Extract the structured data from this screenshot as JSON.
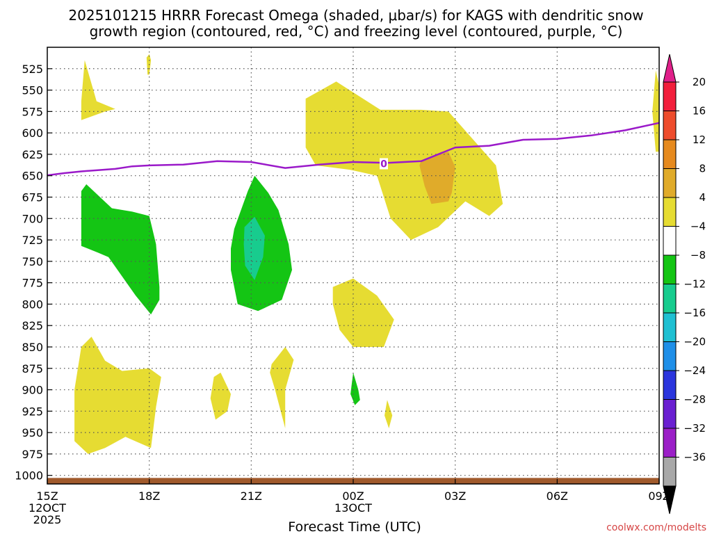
{
  "chart_data": {
    "type": "heatmap",
    "title_line1": "2025101215 HRRR Forecast Omega (shaded, μbar/s) for KAGS with dendritic snow",
    "title_line2": "growth region (contoured, red, °C) and freezing level (contoured, purple, °C)",
    "xlabel": "Forecast Time (UTC)",
    "credit": "coolwx.com/modelts",
    "x_range_hours": [
      0,
      18
    ],
    "y_range_mb": [
      1010,
      500
    ],
    "y_axis_inverted": true,
    "x_ticks": [
      {
        "hour": 0,
        "label": "15Z",
        "sub": [
          "12OCT",
          "2025"
        ]
      },
      {
        "hour": 3,
        "label": "18Z",
        "sub": []
      },
      {
        "hour": 6,
        "label": "21Z",
        "sub": []
      },
      {
        "hour": 9,
        "label": "00Z",
        "sub": [
          "13OCT"
        ]
      },
      {
        "hour": 12,
        "label": "03Z",
        "sub": []
      },
      {
        "hour": 15,
        "label": "06Z",
        "sub": []
      },
      {
        "hour": 18,
        "label": "09Z",
        "sub": []
      }
    ],
    "y_ticks": [
      525,
      550,
      575,
      600,
      625,
      650,
      675,
      700,
      725,
      750,
      775,
      800,
      825,
      850,
      875,
      900,
      925,
      950,
      975,
      1000
    ],
    "colorbar": {
      "levels": [
        -36,
        -32,
        -28,
        -24,
        -20,
        -16,
        -12,
        -8,
        -4,
        4,
        8,
        12,
        16,
        20
      ],
      "colors": [
        "#000000",
        "#a8a8a8",
        "#9b1fc7",
        "#6a1fd1",
        "#2b35dd",
        "#1f8fe8",
        "#1fc0d2",
        "#18cc8e",
        "#14c514",
        "#ffffff",
        "#e6dc32",
        "#e0ab2a",
        "#e68a1e",
        "#ee4c2c",
        "#f21f3c",
        "#e0208a"
      ],
      "labels": [
        "20",
        "16",
        "12",
        "8",
        "4",
        "−4",
        "−8",
        "−12",
        "−16",
        "−20",
        "−24",
        "−28",
        "−32",
        "−36"
      ]
    },
    "freezing_level": {
      "label": "0",
      "hours": [
        -0.5,
        0.5,
        1,
        2,
        2.5,
        3,
        4,
        5,
        6,
        7,
        8,
        9,
        10,
        11,
        12,
        13,
        14,
        15,
        16,
        17,
        18.5
      ],
      "pressure": [
        652,
        647,
        645,
        642,
        639,
        638,
        637,
        633,
        634,
        641,
        637,
        634,
        635,
        633,
        617,
        615,
        608,
        607,
        603,
        597,
        584
      ]
    },
    "omega_regions": [
      {
        "level": "4 to 8",
        "color": "#e6dc32",
        "points": [
          [
            1,
            563
          ],
          [
            1.1,
            515
          ],
          [
            1.45,
            563
          ],
          [
            2,
            572
          ],
          [
            1.7,
            575
          ],
          [
            1,
            585
          ]
        ]
      },
      {
        "level": "4 to 8",
        "color": "#e6dc32",
        "points": [
          [
            7.6,
            560
          ],
          [
            8.5,
            540
          ],
          [
            9.8,
            573
          ],
          [
            11,
            573
          ],
          [
            11.8,
            575
          ],
          [
            12.4,
            602
          ],
          [
            13.2,
            638
          ],
          [
            13.4,
            683
          ],
          [
            13,
            697
          ],
          [
            12.3,
            680
          ],
          [
            11.5,
            710
          ],
          [
            10.7,
            725
          ],
          [
            10.1,
            700
          ],
          [
            9.7,
            650
          ],
          [
            8.9,
            643
          ],
          [
            7.9,
            638
          ],
          [
            7.6,
            617
          ]
        ]
      },
      {
        "level": "4 to 8",
        "color": "#e6dc32",
        "points": [
          [
            17.8,
            575
          ],
          [
            17.9,
            527
          ],
          [
            18.2,
            580
          ],
          [
            18.2,
            622
          ],
          [
            17.9,
            622
          ]
        ]
      },
      {
        "level": "4 to 8",
        "color": "#e6dc32",
        "points": [
          [
            8.4,
            780
          ],
          [
            9,
            770
          ],
          [
            9.7,
            790
          ],
          [
            10.2,
            818
          ],
          [
            9.9,
            850
          ],
          [
            9,
            850
          ],
          [
            8.6,
            830
          ],
          [
            8.4,
            800
          ]
        ]
      },
      {
        "level": "4 to 8",
        "color": "#e6dc32",
        "points": [
          [
            1,
            850
          ],
          [
            1.3,
            838
          ],
          [
            1.7,
            866
          ],
          [
            2.2,
            878
          ],
          [
            3,
            875
          ],
          [
            3.35,
            885
          ],
          [
            3.2,
            920
          ],
          [
            3.05,
            968
          ],
          [
            2.3,
            955
          ],
          [
            1.7,
            968
          ],
          [
            1.2,
            975
          ],
          [
            0.8,
            960
          ],
          [
            0.8,
            900
          ]
        ]
      },
      {
        "level": "4 to 8",
        "color": "#e6dc32",
        "points": [
          [
            4.9,
            885
          ],
          [
            5.1,
            880
          ],
          [
            5.4,
            905
          ],
          [
            5.3,
            925
          ],
          [
            4.95,
            935
          ],
          [
            4.8,
            910
          ]
        ]
      },
      {
        "level": "4 to 8",
        "color": "#e6dc32",
        "points": [
          [
            6.6,
            870
          ],
          [
            7.0,
            850
          ],
          [
            7.25,
            865
          ],
          [
            7.0,
            900
          ],
          [
            7.0,
            945
          ],
          [
            6.7,
            900
          ],
          [
            6.55,
            880
          ]
        ]
      },
      {
        "level": "4 to 8",
        "color": "#e6dc32",
        "points": [
          [
            10.0,
            912
          ],
          [
            10.15,
            930
          ],
          [
            10.05,
            945
          ],
          [
            9.92,
            930
          ]
        ]
      },
      {
        "level": "4 to 8",
        "color": "#e6dc32",
        "points": [
          [
            2.92,
            512
          ],
          [
            3.0,
            508
          ],
          [
            3.05,
            515
          ],
          [
            3.0,
            532
          ],
          [
            2.95,
            532
          ]
        ]
      },
      {
        "level": "8 to 12",
        "color": "#e0ab2a",
        "points": [
          [
            11,
            632
          ],
          [
            11.8,
            622
          ],
          [
            12.0,
            640
          ],
          [
            11.9,
            670
          ],
          [
            11.8,
            680
          ],
          [
            11.3,
            683
          ],
          [
            11.1,
            662
          ],
          [
            10.95,
            638
          ]
        ]
      },
      {
        "level": "-4 to -8",
        "color": "#14c514",
        "points": [
          [
            1,
            668
          ],
          [
            1.15,
            660
          ],
          [
            1.9,
            688
          ],
          [
            2.5,
            692
          ],
          [
            3,
            697
          ],
          [
            3.2,
            730
          ],
          [
            3.3,
            780
          ],
          [
            3.3,
            795
          ],
          [
            3.05,
            812
          ],
          [
            2.6,
            790
          ],
          [
            1.8,
            745
          ],
          [
            1.5,
            740
          ],
          [
            1,
            732
          ]
        ]
      },
      {
        "level": "-4 to -8",
        "color": "#14c514",
        "points": [
          [
            5.5,
            712
          ],
          [
            5.9,
            668
          ],
          [
            6.1,
            650
          ],
          [
            6.5,
            670
          ],
          [
            6.8,
            690
          ],
          [
            7.1,
            730
          ],
          [
            7.2,
            760
          ],
          [
            6.9,
            795
          ],
          [
            6.2,
            808
          ],
          [
            5.6,
            800
          ],
          [
            5.4,
            760
          ],
          [
            5.4,
            735
          ]
        ]
      },
      {
        "level": "-4 to -8",
        "color": "#14c514",
        "points": [
          [
            8.95,
            895
          ],
          [
            9.0,
            880
          ],
          [
            9.15,
            900
          ],
          [
            9.2,
            912
          ],
          [
            9.05,
            918
          ],
          [
            8.92,
            905
          ]
        ]
      },
      {
        "level": "-8 to -12",
        "color": "#18cc8e",
        "points": [
          [
            5.8,
            710
          ],
          [
            6.1,
            698
          ],
          [
            6.4,
            720
          ],
          [
            6.35,
            745
          ],
          [
            6.1,
            772
          ],
          [
            5.82,
            755
          ],
          [
            5.78,
            730
          ]
        ]
      }
    ],
    "ground_band": {
      "color": "#a05a2c",
      "top_mb": 1003,
      "bottom_mb": 1010
    }
  }
}
